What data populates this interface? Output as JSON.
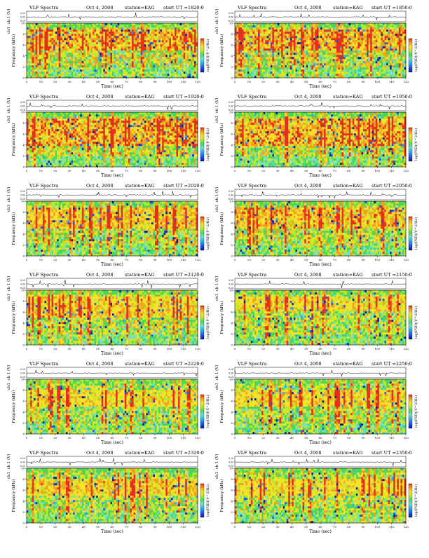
{
  "header_fixed": {
    "title": "VLF Spectra",
    "date": "Oct 4, 2008",
    "station": "station=KAG",
    "start_prefix": "start  UT ="
  },
  "axes": {
    "time_label": "Time (sec)",
    "freq_label": "Frequency (kHz)",
    "ch_label": "ch 1 (V)",
    "ch1_label": "ch1",
    "colorbar_label": "log(PSD)(V^2/Hz)",
    "x_ticks": [
      "0",
      "10",
      "20",
      "30",
      "40",
      "50",
      "60",
      "70",
      "80",
      "90",
      "100",
      "110",
      "120"
    ],
    "y_ticks": [
      "0",
      "2",
      "4",
      "6",
      "8",
      "10"
    ],
    "wave_ticks": [
      "0.20",
      "0.00",
      "-0.20"
    ]
  },
  "colorscale": [
    "#0b1a9a",
    "#1f4ee0",
    "#27a6ee",
    "#6fe0c8",
    "#49d65a",
    "#b8e82b",
    "#f6e22a",
    "#f4a01f",
    "#e3301b"
  ],
  "chart_data": [
    {
      "type": "heatmap",
      "title": "VLF Spectra",
      "start_ut": "1820:0",
      "xlabel": "Time (sec)",
      "ylabel": "Frequency (kHz)",
      "xlim": [
        0,
        120
      ],
      "ylim": [
        0,
        10
      ],
      "red_band_khz": [
        5,
        9
      ],
      "intensity": 0.75
    },
    {
      "type": "heatmap",
      "title": "VLF Spectra",
      "start_ut": "1850:0",
      "xlabel": "Time (sec)",
      "ylabel": "Frequency (kHz)",
      "xlim": [
        0,
        120
      ],
      "ylim": [
        0,
        10
      ],
      "red_band_khz": [
        5,
        9
      ],
      "intensity": 0.72
    },
    {
      "type": "heatmap",
      "title": "VLF Spectra",
      "start_ut": "1920:0",
      "xlabel": "Time (sec)",
      "ylabel": "Frequency (kHz)",
      "xlim": [
        0,
        120
      ],
      "ylim": [
        0,
        10
      ],
      "red_band_khz": [
        4,
        9
      ],
      "intensity": 0.78
    },
    {
      "type": "heatmap",
      "title": "VLF Spectra",
      "start_ut": "1950:0",
      "xlabel": "Time (sec)",
      "ylabel": "Frequency (kHz)",
      "xlim": [
        0,
        120
      ],
      "ylim": [
        0,
        10
      ],
      "red_band_khz": [
        4,
        9
      ],
      "intensity": 0.76
    },
    {
      "type": "heatmap",
      "title": "VLF Spectra",
      "start_ut": "2020:0",
      "xlabel": "Time (sec)",
      "ylabel": "Frequency (kHz)",
      "xlim": [
        0,
        120
      ],
      "ylim": [
        0,
        10
      ],
      "red_band_khz": [
        5,
        9
      ],
      "intensity": 0.6
    },
    {
      "type": "heatmap",
      "title": "VLF Spectra",
      "start_ut": "2050:0",
      "xlabel": "Time (sec)",
      "ylabel": "Frequency (kHz)",
      "xlim": [
        0,
        120
      ],
      "ylim": [
        0,
        10
      ],
      "red_band_khz": [
        5,
        9
      ],
      "intensity": 0.62
    },
    {
      "type": "heatmap",
      "title": "VLF Spectra",
      "start_ut": "2120:0",
      "xlabel": "Time (sec)",
      "ylabel": "Frequency (kHz)",
      "xlim": [
        0,
        120
      ],
      "ylim": [
        0,
        10
      ],
      "red_band_khz": [
        5,
        9
      ],
      "intensity": 0.55
    },
    {
      "type": "heatmap",
      "title": "VLF Spectra",
      "start_ut": "2150:0",
      "xlabel": "Time (sec)",
      "ylabel": "Frequency (kHz)",
      "xlim": [
        0,
        120
      ],
      "ylim": [
        0,
        10
      ],
      "red_band_khz": [
        6,
        9
      ],
      "intensity": 0.45
    },
    {
      "type": "heatmap",
      "title": "VLF Spectra",
      "start_ut": "2220:0",
      "xlabel": "Time (sec)",
      "ylabel": "Frequency (kHz)",
      "xlim": [
        0,
        120
      ],
      "ylim": [
        0,
        10
      ],
      "red_band_khz": [
        5,
        8
      ],
      "intensity": 0.45
    },
    {
      "type": "heatmap",
      "title": "VLF Spectra",
      "start_ut": "2250:0",
      "xlabel": "Time (sec)",
      "ylabel": "Frequency (kHz)",
      "xlim": [
        0,
        120
      ],
      "ylim": [
        0,
        10
      ],
      "red_band_khz": [
        5,
        8
      ],
      "intensity": 0.47
    },
    {
      "type": "heatmap",
      "title": "VLF Spectra",
      "start_ut": "2320:0",
      "xlabel": "Time (sec)",
      "ylabel": "Frequency (kHz)",
      "xlim": [
        0,
        120
      ],
      "ylim": [
        0,
        10
      ],
      "red_band_khz": [
        5,
        8
      ],
      "intensity": 0.5
    },
    {
      "type": "heatmap",
      "title": "VLF Spectra",
      "start_ut": "2350:0",
      "xlabel": "Time (sec)",
      "ylabel": "Frequency (kHz)",
      "xlim": [
        0,
        120
      ],
      "ylim": [
        0,
        10
      ],
      "red_band_khz": [
        5,
        8
      ],
      "intensity": 0.42
    }
  ]
}
